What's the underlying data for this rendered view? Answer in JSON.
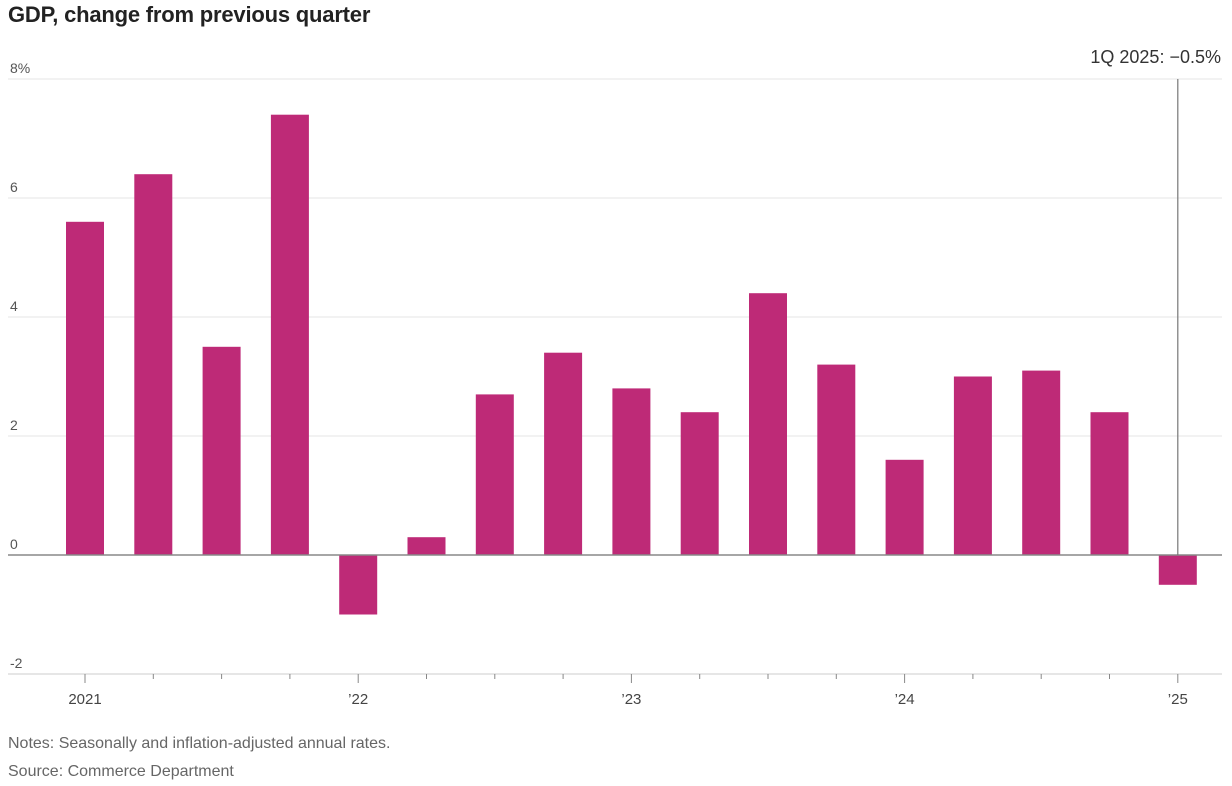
{
  "chart_data": {
    "type": "bar",
    "title": "GDP, change from previous quarter",
    "xlabel": "",
    "ylabel": "",
    "ylim": [
      -2,
      8
    ],
    "y_ticks": [
      {
        "value": 8,
        "label": "8%"
      },
      {
        "value": 6,
        "label": "6"
      },
      {
        "value": 4,
        "label": "4"
      },
      {
        "value": 2,
        "label": "2"
      },
      {
        "value": 0,
        "label": "0"
      },
      {
        "value": -2,
        "label": "-2"
      }
    ],
    "categories": [
      "1Q 2021",
      "2Q 2021",
      "3Q 2021",
      "4Q 2021",
      "1Q 2022",
      "2Q 2022",
      "3Q 2022",
      "4Q 2022",
      "1Q 2023",
      "2Q 2023",
      "3Q 2023",
      "4Q 2023",
      "1Q 2024",
      "2Q 2024",
      "3Q 2024",
      "4Q 2024",
      "1Q 2025"
    ],
    "values": [
      5.6,
      6.4,
      3.5,
      7.4,
      -1.0,
      0.3,
      2.7,
      3.4,
      2.8,
      2.4,
      4.4,
      3.2,
      1.6,
      3.0,
      3.1,
      2.4,
      -0.5
    ],
    "x_tick_labels": [
      {
        "index": 0,
        "label": "2021"
      },
      {
        "index": 4,
        "label": "’22"
      },
      {
        "index": 8,
        "label": "’23"
      },
      {
        "index": 12,
        "label": "’24"
      },
      {
        "index": 16,
        "label": "’25"
      }
    ],
    "annotation": {
      "index": 16,
      "label": "1Q 2025: −0.5%"
    },
    "bar_color": "#be2a77",
    "grid": true
  },
  "notes": {
    "line1": "Notes: Seasonally and inflation-adjusted annual rates.",
    "line2": "Source: Commerce Department"
  }
}
